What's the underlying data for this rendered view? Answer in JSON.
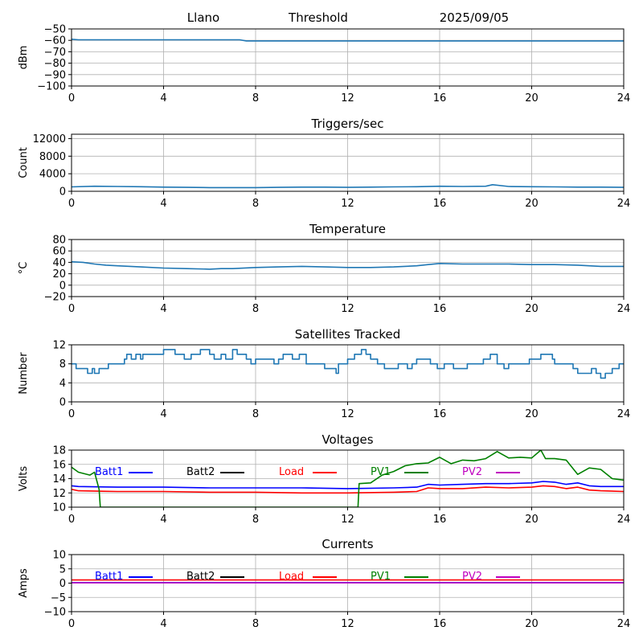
{
  "header": {
    "site": "Llano",
    "mode": "Threshold",
    "date": "2025/09/05"
  },
  "chart_data": [
    {
      "type": "line",
      "title": "",
      "xlabel": "",
      "ylabel": "dBm",
      "xlim": [
        0,
        24
      ],
      "ylim": [
        -100,
        -50
      ],
      "xticks": [
        0,
        4,
        8,
        12,
        16,
        20,
        24
      ],
      "yticks": [
        -100,
        -90,
        -80,
        -70,
        -60,
        -50
      ],
      "grid": true,
      "series": [
        {
          "color": "#1f77b4",
          "x": [
            0,
            0.3,
            7.3,
            7.6,
            24
          ],
          "y": [
            -59,
            -59.5,
            -59.5,
            -60.5,
            -60.5
          ]
        }
      ]
    },
    {
      "type": "line",
      "title": "Triggers/sec",
      "xlabel": "",
      "ylabel": "Count",
      "xlim": [
        0,
        24
      ],
      "ylim": [
        0,
        13000
      ],
      "xticks": [
        0,
        4,
        8,
        12,
        16,
        20,
        24
      ],
      "yticks": [
        0,
        4000,
        8000,
        12000
      ],
      "grid": true,
      "series": [
        {
          "color": "#1f77b4",
          "x": [
            0,
            1,
            2,
            3,
            4,
            5,
            6,
            7,
            8,
            9,
            10,
            11,
            12,
            13,
            14,
            15,
            16,
            17,
            18,
            18.3,
            19,
            20,
            21,
            22,
            23,
            24
          ],
          "y": [
            1000,
            1150,
            1100,
            1050,
            950,
            900,
            850,
            850,
            850,
            900,
            950,
            950,
            900,
            950,
            1000,
            1050,
            1150,
            1100,
            1150,
            1500,
            1100,
            1050,
            1000,
            950,
            950,
            900
          ]
        }
      ]
    },
    {
      "type": "line",
      "title": "Temperature",
      "xlabel": "",
      "ylabel": "°C",
      "xlim": [
        0,
        24
      ],
      "ylim": [
        -20,
        80
      ],
      "xticks": [
        0,
        4,
        8,
        12,
        16,
        20,
        24
      ],
      "yticks": [
        -20,
        0,
        20,
        40,
        60,
        80
      ],
      "grid": true,
      "series": [
        {
          "color": "#1f77b4",
          "x": [
            0,
            0.5,
            1,
            1.5,
            2,
            3,
            4,
            5,
            6,
            6.5,
            7,
            8,
            9,
            10,
            11,
            12,
            13,
            14,
            15,
            15.5,
            16,
            17,
            18,
            19,
            20,
            21,
            22,
            23,
            24
          ],
          "y": [
            41,
            40,
            37,
            35,
            34,
            32,
            30,
            29,
            28,
            29,
            29,
            31,
            32,
            33,
            32,
            31,
            31,
            32,
            34,
            36,
            38,
            37,
            37,
            37,
            36,
            36,
            35,
            33,
            33
          ]
        }
      ]
    },
    {
      "type": "line",
      "title": "Satellites Tracked",
      "xlabel": "",
      "ylabel": "Number",
      "xlim": [
        0,
        24
      ],
      "ylim": [
        0,
        12
      ],
      "xticks": [
        0,
        4,
        8,
        12,
        16,
        20,
        24
      ],
      "yticks": [
        0,
        4,
        8,
        12
      ],
      "grid": true,
      "step": true,
      "series": [
        {
          "color": "#1f77b4",
          "x": [
            0,
            0.2,
            0.7,
            0.9,
            1.0,
            1.2,
            1.6,
            2.3,
            2.4,
            2.6,
            2.8,
            3.0,
            3.1,
            3.3,
            3.6,
            4.0,
            4.5,
            4.9,
            5.2,
            5.6,
            6.0,
            6.2,
            6.5,
            6.7,
            7.0,
            7.2,
            7.6,
            7.8,
            8.0,
            8.4,
            8.8,
            9.0,
            9.2,
            9.6,
            9.9,
            10.2,
            11.0,
            11.5,
            11.6,
            12.0,
            12.3,
            12.6,
            12.8,
            13.0,
            13.3,
            13.6,
            14.0,
            14.2,
            14.6,
            14.8,
            15.0,
            15.6,
            15.9,
            16.2,
            16.6,
            16.9,
            17.2,
            17.9,
            18.2,
            18.5,
            18.8,
            19.0,
            19.6,
            19.9,
            20.4,
            20.9,
            21.0,
            21.8,
            22.0,
            22.6,
            22.8,
            23.0,
            23.2,
            23.5,
            23.8,
            24.0
          ],
          "y": [
            8,
            7,
            6,
            7,
            6,
            7,
            8,
            9,
            10,
            9,
            10,
            9,
            10,
            10,
            10,
            11,
            10,
            9,
            10,
            11,
            10,
            9,
            10,
            9,
            11,
            10,
            9,
            8,
            9,
            9,
            8,
            9,
            10,
            9,
            10,
            8,
            7,
            6,
            8,
            9,
            10,
            11,
            10,
            9,
            8,
            7,
            7,
            8,
            7,
            8,
            9,
            8,
            7,
            8,
            7,
            7,
            8,
            9,
            10,
            8,
            7,
            8,
            8,
            9,
            10,
            9,
            8,
            7,
            6,
            7,
            6,
            5,
            6,
            7,
            8,
            8
          ]
        }
      ]
    },
    {
      "type": "line",
      "title": "Voltages",
      "xlabel": "",
      "ylabel": "Volts",
      "xlim": [
        0,
        24
      ],
      "ylim": [
        10,
        18
      ],
      "xticks": [
        0,
        4,
        8,
        12,
        16,
        20,
        24
      ],
      "yticks": [
        10,
        12,
        14,
        16,
        18
      ],
      "grid": true,
      "legend": "top, single row",
      "series": [
        {
          "name": "Batt1",
          "color": "#0000ff",
          "x": [
            0,
            0.3,
            2,
            4,
            6,
            8,
            10,
            12,
            14,
            15,
            15.5,
            16,
            17,
            18,
            19,
            20,
            20.5,
            21,
            21.5,
            22,
            22.5,
            23,
            24
          ],
          "y": [
            13.0,
            12.9,
            12.8,
            12.8,
            12.7,
            12.7,
            12.7,
            12.6,
            12.7,
            12.8,
            13.2,
            13.1,
            13.2,
            13.3,
            13.3,
            13.4,
            13.6,
            13.5,
            13.2,
            13.4,
            13.0,
            12.9,
            12.9
          ]
        },
        {
          "name": "Load",
          "color": "#ff0000",
          "x": [
            0,
            0.3,
            2,
            4,
            6,
            8,
            10,
            12,
            14,
            15,
            15.5,
            16,
            17,
            18,
            19,
            20,
            20.5,
            21,
            21.5,
            22,
            22.5,
            23,
            24
          ],
          "y": [
            12.5,
            12.3,
            12.2,
            12.2,
            12.1,
            12.1,
            12.0,
            12.0,
            12.1,
            12.2,
            12.7,
            12.6,
            12.6,
            12.8,
            12.7,
            12.8,
            13.0,
            12.9,
            12.6,
            12.8,
            12.4,
            12.3,
            12.2
          ]
        },
        {
          "name": "PV1",
          "color": "#008000",
          "x": [
            0,
            0.3,
            0.8,
            1.0,
            1.2,
            1.25,
            12.45,
            12.5,
            13.0,
            13.5,
            14.0,
            14.5,
            15.0,
            15.5,
            16.0,
            16.5,
            17.0,
            17.5,
            18.0,
            18.5,
            19.0,
            19.5,
            20.0,
            20.4,
            20.6,
            21.0,
            21.5,
            22.0,
            22.5,
            23.0,
            23.5,
            24.0
          ],
          "y": [
            15.6,
            14.9,
            14.5,
            14.9,
            12.5,
            10,
            10,
            13.3,
            13.4,
            14.5,
            15.0,
            15.8,
            16.1,
            16.2,
            17.0,
            16.1,
            16.6,
            16.5,
            16.8,
            17.8,
            16.9,
            17.0,
            16.9,
            18.0,
            16.8,
            16.8,
            16.6,
            14.6,
            15.5,
            15.3,
            14.0,
            13.8
          ]
        }
      ],
      "legend_entries": [
        {
          "name": "Batt1",
          "color": "#0000ff"
        },
        {
          "name": "Batt2",
          "color": "#000000"
        },
        {
          "name": "Load",
          "color": "#ff0000"
        },
        {
          "name": "PV1",
          "color": "#008000"
        },
        {
          "name": "PV2",
          "color": "#c000c0"
        }
      ]
    },
    {
      "type": "line",
      "title": "Currents",
      "xlabel": "",
      "ylabel": "Amps",
      "xlim": [
        0,
        24
      ],
      "ylim": [
        -10,
        10
      ],
      "xticks": [
        0,
        4,
        8,
        12,
        16,
        20,
        24
      ],
      "yticks": [
        -10,
        -5,
        0,
        5,
        10
      ],
      "grid": true,
      "legend": "top, single row",
      "series": [
        {
          "name": "Load",
          "color": "#ff0000",
          "x": [
            0,
            24
          ],
          "y": [
            1.1,
            1.1
          ]
        },
        {
          "name": "Batt1",
          "color": "#0000ff",
          "x": [
            0,
            24
          ],
          "y": [
            0.2,
            0.2
          ]
        },
        {
          "name": "PV2",
          "color": "#c000c0",
          "x": [
            0,
            24
          ],
          "y": [
            0.1,
            0.1
          ]
        }
      ],
      "legend_entries": [
        {
          "name": "Batt1",
          "color": "#0000ff"
        },
        {
          "name": "Batt2",
          "color": "#000000"
        },
        {
          "name": "Load",
          "color": "#ff0000"
        },
        {
          "name": "PV1",
          "color": "#008000"
        },
        {
          "name": "PV2",
          "color": "#c000c0"
        }
      ]
    }
  ]
}
